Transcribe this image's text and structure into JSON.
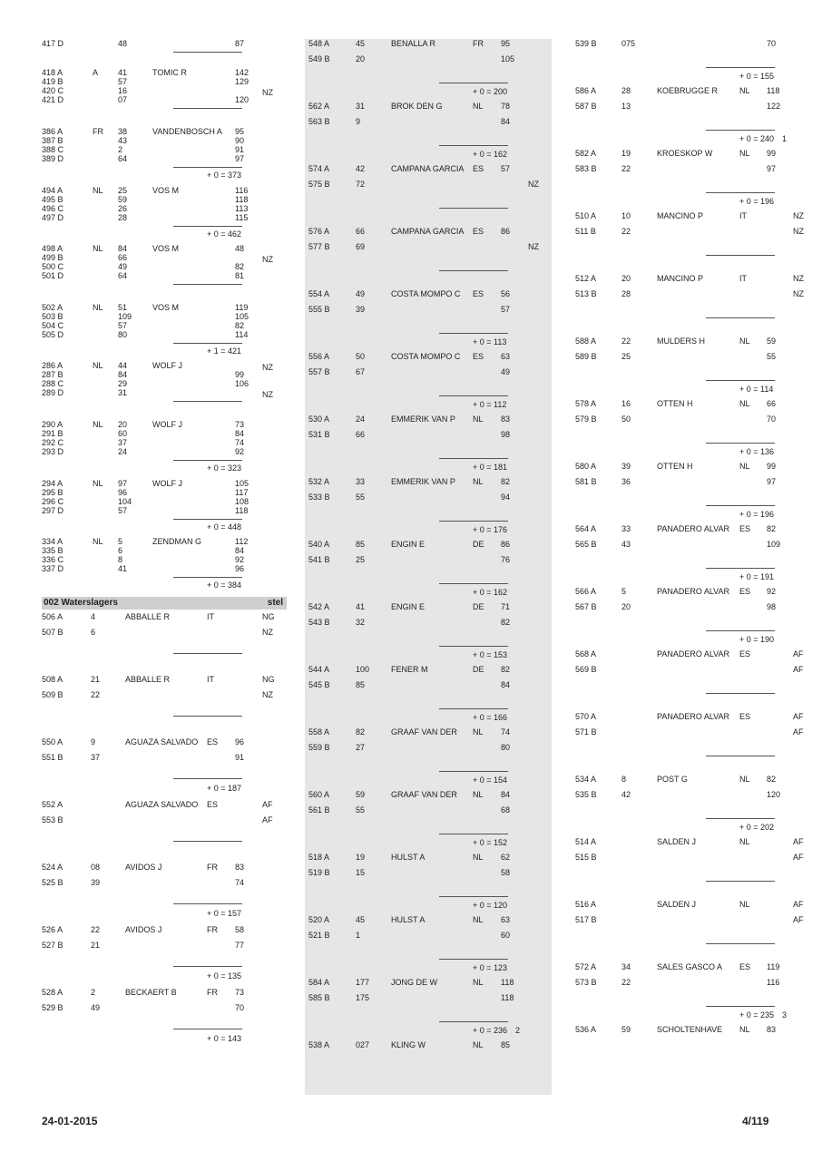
{
  "section": {
    "title": "002 Waterslagers",
    "right": "stel"
  },
  "footer": {
    "date": "24-01-2015",
    "page": "4/119"
  },
  "col1a": [
    {
      "lines": [
        {
          "code": "417 D",
          "no": "48",
          "val": "87"
        }
      ],
      "rule": true,
      "total": ""
    },
    {
      "lines": [
        {
          "code": "418 A",
          "mark": "A",
          "no": "41",
          "val": "142"
        },
        {
          "code": "419 B",
          "no": "57",
          "val": "129"
        },
        {
          "code": "420 C",
          "no": "16",
          "val": "",
          "flag": "NZ"
        },
        {
          "code": "421 D",
          "no": "07",
          "val": "120"
        }
      ],
      "name": "TOMIC R",
      "rule": true,
      "total": ""
    },
    {
      "lines": [
        {
          "code": "386 A",
          "no": "38",
          "val": "95"
        },
        {
          "code": "387 B",
          "no": "43",
          "val": "90"
        },
        {
          "code": "388 C",
          "no": "2",
          "val": "91"
        },
        {
          "code": "389 D",
          "no": "64",
          "val": "97"
        }
      ],
      "country": "FR",
      "name": "VANDENBOSCH A",
      "rule": true,
      "total": "+ 0 = 373"
    },
    {
      "lines": [
        {
          "code": "494 A",
          "no": "25",
          "val": "116"
        },
        {
          "code": "495 B",
          "no": "59",
          "val": "118"
        },
        {
          "code": "496 C",
          "no": "26",
          "val": "113"
        },
        {
          "code": "497 D",
          "no": "28",
          "val": "115"
        }
      ],
      "country": "NL",
      "name": "VOS M",
      "rule": true,
      "total": "+ 0 = 462"
    },
    {
      "lines": [
        {
          "code": "498 A",
          "no": "84",
          "val": "48"
        },
        {
          "code": "499 B",
          "no": "66",
          "val": "",
          "flag": "NZ"
        },
        {
          "code": "500 C",
          "no": "49",
          "val": "82"
        },
        {
          "code": "501 D",
          "no": "64",
          "val": "81"
        }
      ],
      "country": "NL",
      "name": "VOS M",
      "rule": true,
      "total": ""
    },
    {
      "lines": [
        {
          "code": "502 A",
          "no": "51",
          "val": "119"
        },
        {
          "code": "503 B",
          "no": "109",
          "val": "105"
        },
        {
          "code": "504 C",
          "no": "57",
          "val": "82"
        },
        {
          "code": "505 D",
          "no": "80",
          "val": "114"
        }
      ],
      "country": "NL",
      "name": "VOS M",
      "rule": true,
      "total": "+ 1 = 421"
    },
    {
      "lines": [
        {
          "code": "286 A",
          "no": "44",
          "val": "",
          "flag": "NZ"
        },
        {
          "code": "287 B",
          "no": "84",
          "val": "99"
        },
        {
          "code": "288 C",
          "no": "29",
          "val": "106"
        },
        {
          "code": "289 D",
          "no": "31",
          "val": "",
          "flag": "NZ"
        }
      ],
      "country": "NL",
      "name": "WOLF J",
      "rule": true,
      "total": ""
    },
    {
      "lines": [
        {
          "code": "290 A",
          "no": "20",
          "val": "73"
        },
        {
          "code": "291 B",
          "no": "60",
          "val": "84"
        },
        {
          "code": "292 C",
          "no": "37",
          "val": "74"
        },
        {
          "code": "293 D",
          "no": "24",
          "val": "92"
        }
      ],
      "country": "NL",
      "name": "WOLF J",
      "rule": true,
      "total": "+ 0 = 323"
    },
    {
      "lines": [
        {
          "code": "294 A",
          "no": "97",
          "val": "105"
        },
        {
          "code": "295 B",
          "no": "96",
          "val": "117"
        },
        {
          "code": "296 C",
          "no": "104",
          "val": "108"
        },
        {
          "code": "297 D",
          "no": "57",
          "val": "118"
        }
      ],
      "country": "NL",
      "name": "WOLF J",
      "rule": true,
      "total": "+ 0 = 448"
    },
    {
      "lines": [
        {
          "code": "334 A",
          "no": "5",
          "val": "112"
        },
        {
          "code": "335 B",
          "no": "6",
          "val": "84"
        },
        {
          "code": "336 C",
          "no": "8",
          "val": "92"
        },
        {
          "code": "337 D",
          "no": "41",
          "val": "96"
        }
      ],
      "country": "NL",
      "name": "ZENDMAN G",
      "rule": true,
      "total": "+ 0 = 384"
    }
  ],
  "col1b": [
    {
      "a": {
        "code": "506 A",
        "no": "4",
        "val": "",
        "flag": "NG"
      },
      "b": {
        "code": "507 B",
        "no": "6",
        "val": "",
        "flag": "NZ"
      },
      "name": "ABBALLE R",
      "country": "IT",
      "total": ""
    },
    {
      "a": {
        "code": "508 A",
        "no": "21",
        "val": "",
        "flag": "NG"
      },
      "b": {
        "code": "509 B",
        "no": "22",
        "val": "",
        "flag": "NZ"
      },
      "name": "ABBALLE R",
      "country": "IT",
      "total": ""
    },
    {
      "a": {
        "code": "550 A",
        "no": "9",
        "val": "96"
      },
      "b": {
        "code": "551 B",
        "no": "37",
        "val": "91"
      },
      "name": "AGUAZA SALVADO",
      "country": "ES",
      "total": "+ 0 = 187"
    },
    {
      "a": {
        "code": "552 A",
        "no": "",
        "val": "",
        "flag": "AF"
      },
      "b": {
        "code": "553 B",
        "no": "",
        "val": "",
        "flag": "AF"
      },
      "name": "AGUAZA SALVADO",
      "country": "ES",
      "total": ""
    },
    {
      "a": {
        "code": "524 A",
        "no": "08",
        "val": "83"
      },
      "b": {
        "code": "525 B",
        "no": "39",
        "val": "74"
      },
      "name": "AVIDOS J",
      "country": "FR",
      "total": "+ 0 = 157"
    },
    {
      "a": {
        "code": "526 A",
        "no": "22",
        "val": "58"
      },
      "b": {
        "code": "527 B",
        "no": "21",
        "val": "77"
      },
      "name": "AVIDOS J",
      "country": "FR",
      "total": "+ 0 = 135"
    },
    {
      "a": {
        "code": "528 A",
        "no": "2",
        "val": "73"
      },
      "b": {
        "code": "529 B",
        "no": "49",
        "val": "70"
      },
      "name": "BECKAERT B",
      "country": "FR",
      "total": "+ 0 = 143"
    }
  ],
  "col2_top": {
    "a": {
      "code": "548 A",
      "no": "45",
      "val": "95"
    },
    "b": {
      "code": "549 B",
      "no": "20",
      "val": "105"
    },
    "name": "BENALLA R",
    "country": "FR"
  },
  "col2": [
    {
      "total": "+ 0 = 200",
      "a": {
        "code": "562 A",
        "no": "31",
        "val": "78"
      },
      "b": {
        "code": "563 B",
        "no": "9",
        "val": "84"
      },
      "name": "BROK DEN G",
      "country": "NL"
    },
    {
      "total": "+ 0 = 162",
      "a": {
        "code": "574 A",
        "no": "42",
        "val": "57"
      },
      "b": {
        "code": "575 B",
        "no": "72",
        "val": "",
        "flag": "NZ"
      },
      "name": "CAMPANA GARCIA",
      "country": "ES"
    },
    {
      "total": "",
      "a": {
        "code": "576 A",
        "no": "66",
        "val": "86"
      },
      "b": {
        "code": "577 B",
        "no": "69",
        "val": "",
        "flag": "NZ"
      },
      "name": "CAMPANA GARCIA",
      "country": "ES"
    },
    {
      "total": "",
      "a": {
        "code": "554 A",
        "no": "49",
        "val": "56"
      },
      "b": {
        "code": "555 B",
        "no": "39",
        "val": "57"
      },
      "name": "COSTA MOMPO C",
      "country": "ES"
    },
    {
      "total": "+ 0 = 113",
      "a": {
        "code": "556 A",
        "no": "50",
        "val": "63"
      },
      "b": {
        "code": "557 B",
        "no": "67",
        "val": "49"
      },
      "name": "COSTA MOMPO C",
      "country": "ES"
    },
    {
      "total": "+ 0 = 112",
      "a": {
        "code": "530 A",
        "no": "24",
        "val": "83"
      },
      "b": {
        "code": "531 B",
        "no": "66",
        "val": "98"
      },
      "name": "EMMERIK VAN P",
      "country": "NL"
    },
    {
      "total": "+ 0 = 181",
      "a": {
        "code": "532 A",
        "no": "33",
        "val": "82"
      },
      "b": {
        "code": "533 B",
        "no": "55",
        "val": "94"
      },
      "name": "EMMERIK VAN P",
      "country": "NL"
    },
    {
      "total": "+ 0 = 176",
      "a": {
        "code": "540 A",
        "no": "85",
        "val": "86"
      },
      "b": {
        "code": "541 B",
        "no": "25",
        "val": "76"
      },
      "name": "ENGIN E",
      "country": "DE"
    },
    {
      "total": "+ 0 = 162",
      "a": {
        "code": "542 A",
        "no": "41",
        "val": "71"
      },
      "b": {
        "code": "543 B",
        "no": "32",
        "val": "82"
      },
      "name": "ENGIN E",
      "country": "DE"
    },
    {
      "total": "+ 0 = 153",
      "a": {
        "code": "544 A",
        "no": "100",
        "val": "82"
      },
      "b": {
        "code": "545 B",
        "no": "85",
        "val": "84"
      },
      "name": "FENER M",
      "country": "DE"
    },
    {
      "total": "+ 0 = 166",
      "a": {
        "code": "558 A",
        "no": "82",
        "val": "74"
      },
      "b": {
        "code": "559 B",
        "no": "27",
        "val": "80"
      },
      "name": "GRAAF VAN DER",
      "country": "NL"
    },
    {
      "total": "+ 0 = 154",
      "a": {
        "code": "560 A",
        "no": "59",
        "val": "84"
      },
      "b": {
        "code": "561 B",
        "no": "55",
        "val": "68"
      },
      "name": "GRAAF VAN DER",
      "country": "NL"
    },
    {
      "total": "+ 0 = 152",
      "a": {
        "code": "518 A",
        "no": "19",
        "val": "62"
      },
      "b": {
        "code": "519 B",
        "no": "15",
        "val": "58"
      },
      "name": "HULST A",
      "country": "NL"
    },
    {
      "total": "+ 0 = 120",
      "a": {
        "code": "520 A",
        "no": "45",
        "val": "63"
      },
      "b": {
        "code": "521 B",
        "no": "1",
        "val": "60"
      },
      "name": "HULST A",
      "country": "NL"
    },
    {
      "total": "+ 0 = 123",
      "a": {
        "code": "584 A",
        "no": "177",
        "val": "118"
      },
      "b": {
        "code": "585 B",
        "no": "175",
        "val": "118"
      },
      "name": "JONG DE W",
      "country": "NL"
    },
    {
      "total": "+ 0 = 236",
      "rank": "2",
      "a": {
        "code": "538 A",
        "no": "027",
        "val": "85"
      },
      "name": "KLING W",
      "country": "NL"
    }
  ],
  "col3_top": {
    "a": {
      "code": "539 B",
      "no": "075",
      "val": "70"
    }
  },
  "col3": [
    {
      "total": "+ 0 = 155",
      "a": {
        "code": "586 A",
        "no": "28",
        "val": "118"
      },
      "b": {
        "code": "587 B",
        "no": "13",
        "val": "122"
      },
      "name": "KOEBRUGGE R",
      "country": "NL"
    },
    {
      "total": "+ 0 = 240",
      "rank": "1",
      "a": {
        "code": "582 A",
        "no": "19",
        "val": "99"
      },
      "b": {
        "code": "583 B",
        "no": "22",
        "val": "97"
      },
      "name": "KROESKOP W",
      "country": "NL"
    },
    {
      "total": "+ 0 = 196",
      "a": {
        "code": "510 A",
        "no": "10",
        "val": "",
        "flag": "NZ"
      },
      "b": {
        "code": "511 B",
        "no": "22",
        "val": "",
        "flag": "NZ"
      },
      "name": "MANCINO P",
      "country": "IT"
    },
    {
      "total": "",
      "a": {
        "code": "512 A",
        "no": "20",
        "val": "",
        "flag": "NZ"
      },
      "b": {
        "code": "513 B",
        "no": "28",
        "val": "",
        "flag": "NZ"
      },
      "name": "MANCINO P",
      "country": "IT"
    },
    {
      "total": "",
      "a": {
        "code": "588 A",
        "no": "22",
        "val": "59"
      },
      "b": {
        "code": "589 B",
        "no": "25",
        "val": "55"
      },
      "name": "MULDERS H",
      "country": "NL"
    },
    {
      "total": "+ 0 = 114",
      "a": {
        "code": "578 A",
        "no": "16",
        "val": "66"
      },
      "b": {
        "code": "579 B",
        "no": "50",
        "val": "70"
      },
      "name": "OTTEN H",
      "country": "NL"
    },
    {
      "total": "+ 0 = 136",
      "a": {
        "code": "580 A",
        "no": "39",
        "val": "99"
      },
      "b": {
        "code": "581 B",
        "no": "36",
        "val": "97"
      },
      "name": "OTTEN H",
      "country": "NL"
    },
    {
      "total": "+ 0 = 196",
      "a": {
        "code": "564 A",
        "no": "33",
        "val": "82"
      },
      "b": {
        "code": "565 B",
        "no": "43",
        "val": "109"
      },
      "name": "PANADERO ALVAR",
      "country": "ES"
    },
    {
      "total": "+ 0 = 191",
      "a": {
        "code": "566 A",
        "no": "5",
        "val": "92"
      },
      "b": {
        "code": "567 B",
        "no": "20",
        "val": "98"
      },
      "name": "PANADERO ALVAR",
      "country": "ES"
    },
    {
      "total": "+ 0 = 190",
      "a": {
        "code": "568 A",
        "no": "",
        "val": "",
        "flag": "AF"
      },
      "b": {
        "code": "569 B",
        "no": "",
        "val": "",
        "flag": "AF"
      },
      "name": "PANADERO ALVAR",
      "country": "ES"
    },
    {
      "total": "",
      "a": {
        "code": "570 A",
        "no": "",
        "val": "",
        "flag": "AF"
      },
      "b": {
        "code": "571 B",
        "no": "",
        "val": "",
        "flag": "AF"
      },
      "name": "PANADERO ALVAR",
      "country": "ES"
    },
    {
      "total": "",
      "a": {
        "code": "534 A",
        "no": "8",
        "val": "82"
      },
      "b": {
        "code": "535 B",
        "no": "42",
        "val": "120"
      },
      "name": "POST G",
      "country": "NL"
    },
    {
      "total": "+ 0 = 202",
      "a": {
        "code": "514 A",
        "no": "",
        "val": "",
        "flag": "AF"
      },
      "b": {
        "code": "515 B",
        "no": "",
        "val": "",
        "flag": "AF"
      },
      "name": "SALDEN J",
      "country": "NL"
    },
    {
      "total": "",
      "a": {
        "code": "516 A",
        "no": "",
        "val": "",
        "flag": "AF"
      },
      "b": {
        "code": "517 B",
        "no": "",
        "val": "",
        "flag": "AF"
      },
      "name": "SALDEN J",
      "country": "NL"
    },
    {
      "total": "",
      "a": {
        "code": "572 A",
        "no": "34",
        "val": "119"
      },
      "b": {
        "code": "573 B",
        "no": "22",
        "val": "116"
      },
      "name": "SALES GASCO A",
      "country": "ES"
    },
    {
      "total": "+ 0 = 235",
      "rank": "3",
      "a": {
        "code": "536 A",
        "no": "59",
        "val": "83"
      },
      "name": "SCHOLTENHAVE",
      "country": "NL"
    }
  ]
}
